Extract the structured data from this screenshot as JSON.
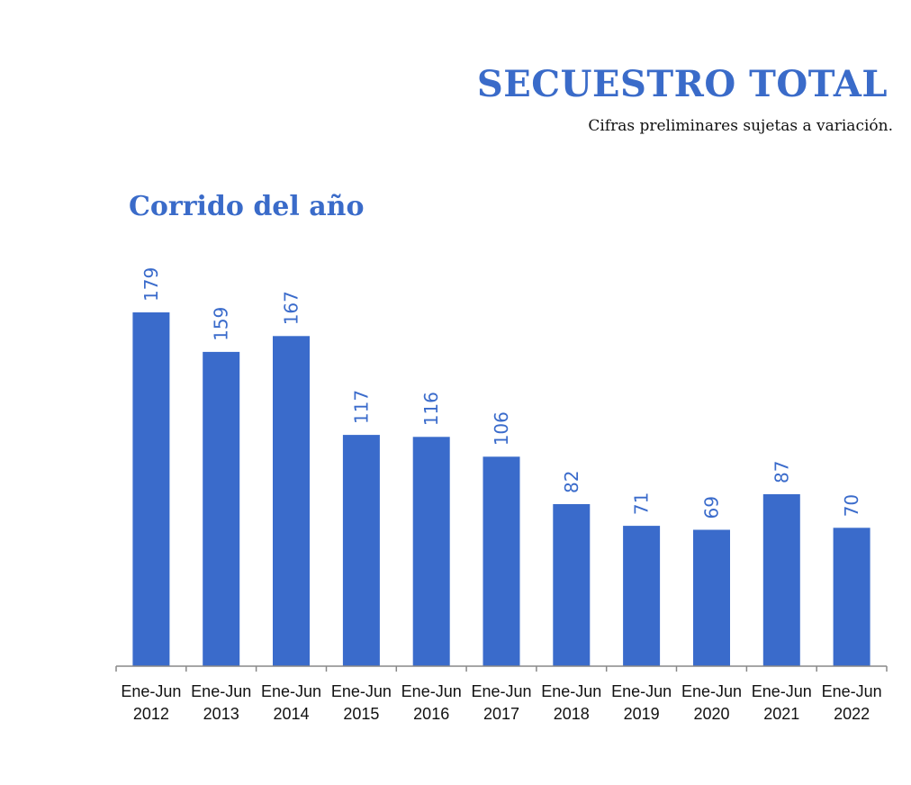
{
  "header": {
    "title": "SECUESTRO TOTAL",
    "subtitle": "Cifras preliminares sujetas a variación.",
    "section_title": "Corrido del año"
  },
  "colors": {
    "bar": "#3A6BCB",
    "title": "#3A6BC9",
    "data_label": "#3A6BCB",
    "axis": "#888888",
    "tick_label": "#111111"
  },
  "chart_data": {
    "type": "bar",
    "categories": [
      [
        "Ene-Jun",
        "2012"
      ],
      [
        "Ene-Jun",
        "2013"
      ],
      [
        "Ene-Jun",
        "2014"
      ],
      [
        "Ene-Jun",
        "2015"
      ],
      [
        "Ene-Jun",
        "2016"
      ],
      [
        "Ene-Jun",
        "2017"
      ],
      [
        "Ene-Jun",
        "2018"
      ],
      [
        "Ene-Jun",
        "2019"
      ],
      [
        "Ene-Jun",
        "2020"
      ],
      [
        "Ene-Jun",
        "2021"
      ],
      [
        "Ene-Jun",
        "2022"
      ]
    ],
    "values": [
      179,
      159,
      167,
      117,
      116,
      106,
      82,
      71,
      69,
      87,
      70
    ],
    "data_labels": [
      "179",
      "159",
      "167",
      "117",
      "116",
      "106",
      "82",
      "71",
      "69",
      "87",
      "70"
    ],
    "ylim": [
      0,
      179
    ],
    "grid": false,
    "legend": "none"
  }
}
